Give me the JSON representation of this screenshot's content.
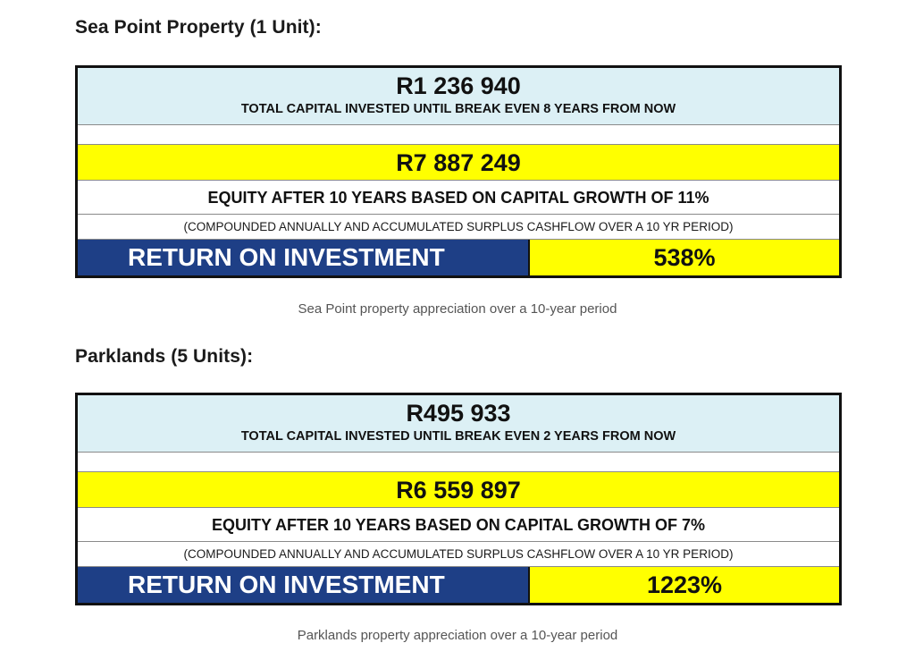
{
  "sections": [
    {
      "heading": "Sea Point Property (1 Unit):",
      "capital_amount": "R1 236 940",
      "capital_caption": "TOTAL CAPITAL INVESTED UNTIL BREAK EVEN 8 YEARS FROM NOW",
      "equity_amount": "R7 887 249",
      "equity_label": "EQUITY AFTER 10 YEARS BASED ON CAPITAL GROWTH OF 11%",
      "note": "(COMPOUNDED ANNUALLY AND ACCUMULATED SURPLUS CASHFLOW OVER A 10 YR PERIOD)",
      "roi_label": "RETURN ON INVESTMENT",
      "roi_value": "538%",
      "caption": "Sea Point property appreciation over a 10-year period"
    },
    {
      "heading": "Parklands (5 Units):",
      "capital_amount": "R495 933",
      "capital_caption": "TOTAL CAPITAL INVESTED UNTIL BREAK EVEN 2 YEARS FROM NOW",
      "equity_amount": "R6 559 897",
      "equity_label": "EQUITY AFTER 10 YEARS BASED ON CAPITAL GROWTH OF 7%",
      "note": "(COMPOUNDED ANNUALLY AND ACCUMULATED SURPLUS CASHFLOW OVER A 10 YR PERIOD)",
      "roi_label": "RETURN ON INVESTMENT",
      "roi_value": "1223%",
      "caption": "Parklands property appreciation over a 10-year period"
    }
  ],
  "colors": {
    "capital_row_bg": "#dcf0f5",
    "highlight_yellow": "#ffff00",
    "roi_label_bg": "#1e3f86",
    "border": "#111111",
    "caption_text": "#555555"
  }
}
